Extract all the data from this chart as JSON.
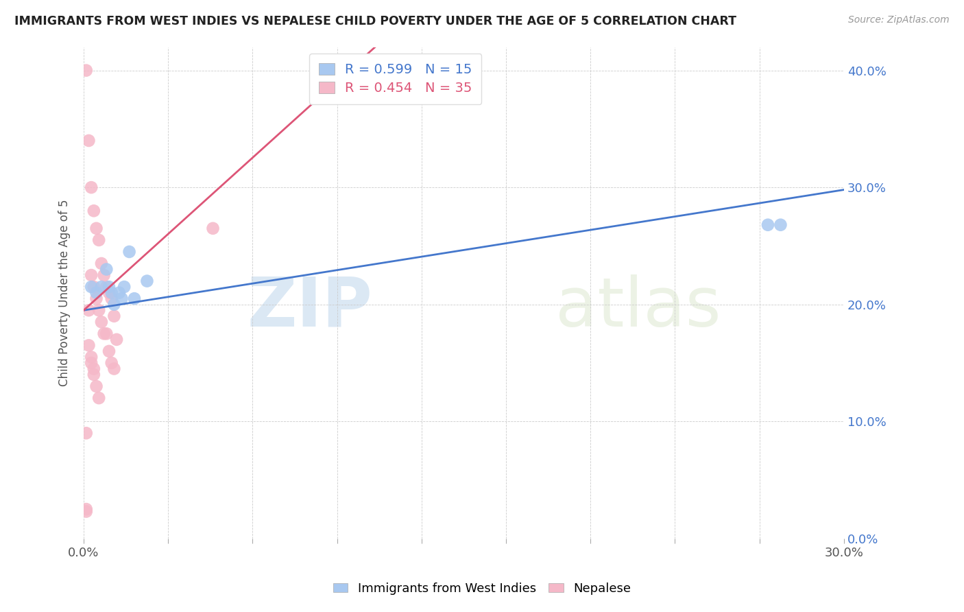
{
  "title": "IMMIGRANTS FROM WEST INDIES VS NEPALESE CHILD POVERTY UNDER THE AGE OF 5 CORRELATION CHART",
  "source": "Source: ZipAtlas.com",
  "ylabel": "Child Poverty Under the Age of 5",
  "legend_label1": "Immigrants from West Indies",
  "legend_label2": "Nepalese",
  "R1": 0.599,
  "N1": 15,
  "R2": 0.454,
  "N2": 35,
  "xmin": 0.0,
  "xmax": 0.3,
  "ymin": 0.0,
  "ymax": 0.42,
  "ytick_positions": [
    0.0,
    0.1,
    0.2,
    0.3,
    0.4
  ],
  "xtick_positions": [
    0.0,
    0.03333,
    0.06667,
    0.1,
    0.13333,
    0.16667,
    0.2,
    0.23333,
    0.26667,
    0.3
  ],
  "xtick_labels_show": [
    "0.0%",
    "",
    "",
    "",
    "",
    "",
    "",
    "",
    "",
    "30.0%"
  ],
  "color_blue": "#a8c8f0",
  "color_pink": "#f5b8c8",
  "color_blue_line": "#4477cc",
  "color_pink_line": "#dd5577",
  "watermark_zip": "ZIP",
  "watermark_atlas": "atlas",
  "blue_points_x": [
    0.003,
    0.005,
    0.007,
    0.009,
    0.01,
    0.011,
    0.012,
    0.014,
    0.015,
    0.016,
    0.018,
    0.02,
    0.025,
    0.27,
    0.275
  ],
  "blue_points_y": [
    0.215,
    0.21,
    0.215,
    0.23,
    0.215,
    0.21,
    0.2,
    0.21,
    0.205,
    0.215,
    0.245,
    0.205,
    0.22,
    0.268,
    0.268
  ],
  "pink_points_x": [
    0.001,
    0.002,
    0.003,
    0.004,
    0.005,
    0.006,
    0.007,
    0.008,
    0.009,
    0.01,
    0.011,
    0.012,
    0.013,
    0.003,
    0.004,
    0.005,
    0.006,
    0.007,
    0.008,
    0.009,
    0.01,
    0.011,
    0.012,
    0.003,
    0.004,
    0.005,
    0.006,
    0.002,
    0.003,
    0.004,
    0.051,
    0.001,
    0.001,
    0.001,
    0.002
  ],
  "pink_points_y": [
    0.4,
    0.34,
    0.3,
    0.28,
    0.265,
    0.255,
    0.235,
    0.225,
    0.215,
    0.21,
    0.205,
    0.19,
    0.17,
    0.225,
    0.215,
    0.205,
    0.195,
    0.185,
    0.175,
    0.175,
    0.16,
    0.15,
    0.145,
    0.15,
    0.14,
    0.13,
    0.12,
    0.165,
    0.155,
    0.145,
    0.265,
    0.09,
    0.025,
    0.023,
    0.195
  ],
  "blue_trend_x": [
    0.0,
    0.3
  ],
  "blue_trend_y": [
    0.195,
    0.298
  ],
  "pink_trend_x": [
    0.0,
    0.115
  ],
  "pink_trend_y": [
    0.195,
    0.42
  ]
}
